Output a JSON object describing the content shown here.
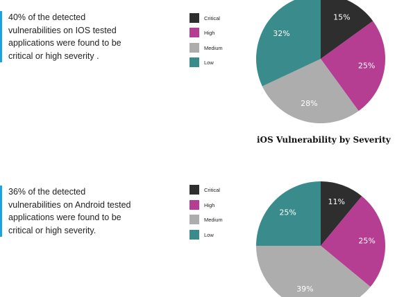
{
  "colors": {
    "critical": "#2e2e2e",
    "high": "#b53e92",
    "medium": "#adadad",
    "low": "#3a8c8c",
    "accent_bar": "#1aa3dc"
  },
  "ios": {
    "callout_text": "40% of the detected vulnerabilities on IOS tested applications were found to be critical or high severity .",
    "legend": [
      "Critical",
      "High",
      "Medium",
      "Low"
    ]
  },
  "android": {
    "callout_text": "36% of the detected vulnerabilities on Android tested applications were found to be critical or high severity.",
    "legend": [
      "Critical",
      "High",
      "Medium",
      "Low"
    ]
  },
  "chart_data": [
    {
      "type": "pie",
      "title": "iOS Vulnerability by Severity",
      "categories": [
        "Critical",
        "High",
        "Medium",
        "Low"
      ],
      "values": [
        15,
        25,
        28,
        32
      ],
      "labels": [
        "15%",
        "25%",
        "28%",
        "32%"
      ],
      "legend_position": "left"
    },
    {
      "type": "pie",
      "title": "",
      "categories": [
        "Critical",
        "High",
        "Medium",
        "Low"
      ],
      "values": [
        11,
        25,
        39,
        25
      ],
      "labels": [
        "11%",
        "25%",
        "39%",
        "25%"
      ],
      "legend_position": "left"
    }
  ]
}
